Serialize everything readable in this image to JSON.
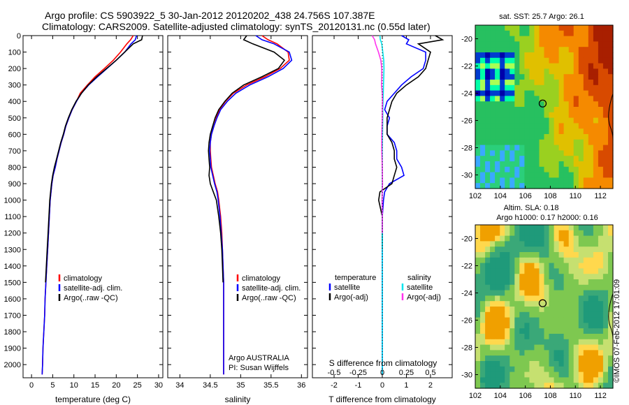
{
  "header": {
    "line1": "Argo profile: CS 5903922_5 30-Jan-2012 20120202_438 24.756S 107.387E",
    "line2": "Climatology: CARS2009. Satellite-adjusted climatology: synTS_20120131.nc (0.55d later)"
  },
  "colors": {
    "climatology": "#ff0000",
    "satellite": "#0000ff",
    "argo": "#000000",
    "sal_sat": "#00e5ee",
    "sal_argo": "#ff33ee"
  },
  "chart_data": [
    {
      "id": "temperature",
      "type": "line",
      "xlabel": "temperature (deg C)",
      "ylabel": "",
      "xlim": [
        -2,
        31
      ],
      "ylim": [
        2080,
        0
      ],
      "xticks": [
        0,
        5,
        10,
        15,
        20,
        25,
        30
      ],
      "yticks": [
        0,
        100,
        200,
        300,
        400,
        500,
        600,
        700,
        800,
        900,
        1000,
        1100,
        1200,
        1300,
        1400,
        1500,
        1600,
        1700,
        1800,
        1900,
        2000
      ],
      "legend": [
        "climatology",
        "satellite-adj. clim.",
        "Argo(..raw -QC)"
      ],
      "series": [
        {
          "name": "climatology",
          "color": "#ff0000",
          "x": [
            24.0,
            23.4,
            22.5,
            21.0,
            19.3,
            17.2,
            15.0,
            13.2,
            11.5,
            10.6,
            9.6,
            8.8,
            8.1,
            7.6,
            7.0,
            6.5,
            6.0,
            5.6,
            5.1,
            4.8,
            4.6,
            4.4,
            4.2,
            4.0,
            3.8,
            3.6,
            3.4,
            3.2,
            3.1,
            3.0,
            2.9,
            2.8,
            2.7,
            2.6,
            2.5
          ],
          "y": [
            0,
            25,
            50,
            100,
            150,
            200,
            250,
            300,
            350,
            400,
            450,
            500,
            550,
            600,
            650,
            700,
            750,
            800,
            850,
            900,
            950,
            1000,
            1100,
            1200,
            1300,
            1400,
            1500,
            1600,
            1700,
            1750,
            1800,
            1850,
            1900,
            2000,
            2060
          ]
        },
        {
          "name": "satellite-adj. clim.",
          "color": "#0000ff",
          "x": [
            24.8,
            24.5,
            23.5,
            22.0,
            20.0,
            17.8,
            15.6,
            13.5,
            11.8,
            10.6,
            9.6,
            8.8,
            8.1,
            7.6,
            7.0,
            6.5,
            6.0,
            5.6,
            5.1,
            4.8,
            4.6,
            4.4,
            4.2,
            4.0,
            3.8,
            3.6,
            3.4,
            3.2,
            3.1,
            3.0,
            2.9,
            2.8,
            2.7,
            2.6,
            2.5
          ],
          "y": [
            0,
            25,
            50,
            100,
            150,
            200,
            250,
            300,
            350,
            400,
            450,
            500,
            550,
            600,
            650,
            700,
            750,
            800,
            850,
            900,
            950,
            1000,
            1100,
            1200,
            1300,
            1400,
            1500,
            1600,
            1700,
            1750,
            1800,
            1850,
            1900,
            2000,
            2060
          ]
        },
        {
          "name": "Argo(..raw -QC)",
          "color": "#000000",
          "x": [
            26.2,
            26.0,
            24.0,
            22.0,
            20.0,
            17.7,
            15.4,
            13.4,
            11.8,
            10.5,
            9.5,
            8.7,
            8.0,
            7.5,
            6.9,
            6.4,
            5.9,
            5.4,
            5.0,
            4.7,
            4.5,
            4.3,
            4.1,
            3.9,
            3.7,
            3.5,
            3.3
          ],
          "y": [
            0,
            25,
            50,
            100,
            150,
            200,
            250,
            300,
            350,
            400,
            450,
            500,
            550,
            600,
            650,
            700,
            750,
            800,
            850,
            900,
            950,
            1000,
            1100,
            1200,
            1300,
            1400,
            1500
          ]
        }
      ]
    },
    {
      "id": "salinity",
      "type": "line",
      "xlabel": "salinity",
      "ylabel": "",
      "xlim": [
        33.8,
        36.1
      ],
      "ylim": [
        2080,
        0
      ],
      "xticks": [
        34,
        34.5,
        35,
        35.5,
        36
      ],
      "legend": [
        "climatology",
        "satellite-adj. clim.",
        "Argo(..raw -QC)"
      ],
      "annotation": [
        "Argo AUSTRALIA",
        "PI: Susan Wijffels"
      ],
      "series": [
        {
          "name": "climatology",
          "color": "#ff0000",
          "x": [
            35.35,
            35.45,
            35.6,
            35.78,
            35.8,
            35.65,
            35.4,
            35.1,
            34.88,
            34.75,
            34.65,
            34.6,
            34.56,
            34.52,
            34.5,
            34.5,
            34.51,
            34.52,
            34.55,
            34.58,
            34.62,
            34.64,
            34.67,
            34.69,
            34.7,
            34.71,
            34.72,
            34.72,
            34.72
          ],
          "y": [
            0,
            25,
            50,
            100,
            150,
            200,
            250,
            300,
            350,
            400,
            450,
            500,
            550,
            600,
            650,
            700,
            750,
            800,
            850,
            900,
            950,
            1000,
            1100,
            1200,
            1300,
            1400,
            1500,
            1600,
            2060
          ]
        },
        {
          "name": "satellite-adj. clim.",
          "color": "#0000ff",
          "x": [
            35.25,
            35.35,
            35.55,
            35.8,
            35.84,
            35.7,
            35.45,
            35.15,
            34.92,
            34.78,
            34.67,
            34.61,
            34.56,
            34.52,
            34.5,
            34.49,
            34.5,
            34.51,
            34.54,
            34.57,
            34.61,
            34.63,
            34.66,
            34.68,
            34.7,
            34.71,
            34.72,
            34.72,
            34.72
          ],
          "y": [
            0,
            25,
            50,
            100,
            150,
            200,
            250,
            300,
            350,
            400,
            450,
            500,
            550,
            600,
            650,
            700,
            750,
            800,
            850,
            900,
            950,
            1000,
            1100,
            1200,
            1300,
            1400,
            1500,
            1600,
            2060
          ]
        },
        {
          "name": "Argo(..raw -QC)",
          "color": "#000000",
          "x": [
            35.1,
            35.05,
            35.2,
            35.55,
            35.72,
            35.62,
            35.35,
            35.05,
            34.86,
            34.74,
            34.64,
            34.58,
            34.54,
            34.5,
            34.48,
            34.47,
            34.48,
            34.49,
            34.48,
            34.5,
            34.55,
            34.6,
            34.64,
            34.67,
            34.69,
            34.7,
            34.71
          ],
          "y": [
            0,
            25,
            50,
            100,
            150,
            200,
            250,
            300,
            350,
            400,
            450,
            500,
            550,
            600,
            650,
            700,
            750,
            800,
            850,
            900,
            950,
            1000,
            1100,
            1200,
            1300,
            1400,
            1500
          ]
        }
      ]
    },
    {
      "id": "differences",
      "type": "line",
      "xlabel": "T difference from climatology",
      "xlabel_top": "S difference from climatology",
      "xlim": [
        -2.9,
        2.9
      ],
      "ylim": [
        2080,
        0
      ],
      "xticks": [
        -2,
        -1,
        0,
        1,
        2
      ],
      "xticklabels": [
        "-2",
        "-1",
        "0",
        "1",
        "2"
      ],
      "top_ticks": [
        -0.5,
        -0.25,
        0,
        0.25,
        0.5
      ],
      "top_ticklabels": [
        "-0.5",
        "-0.25",
        "0",
        "0.25",
        "0.5"
      ],
      "legend_temperature": {
        "title": "temperature",
        "items": [
          "satellite",
          "Argo(-adj)"
        ]
      },
      "legend_salinity": {
        "title": "salinity",
        "items": [
          "satellite",
          "Argo(-adj)"
        ]
      },
      "series": [
        {
          "name": "satellite",
          "color": "#0000ff",
          "x": [
            0.8,
            1.1,
            1.0,
            1.8,
            1.8,
            1.7,
            1.2,
            0.8,
            0.5,
            0.2,
            0.1,
            0.3,
            0.2,
            0.2,
            0.5,
            0.6,
            0.6,
            0.8,
            0.9,
            0.3,
            0.1,
            0.05,
            0.0,
            0.0,
            0.0,
            0.0,
            0.0,
            0.0,
            0.0
          ],
          "y": [
            0,
            25,
            50,
            100,
            150,
            200,
            250,
            300,
            350,
            400,
            450,
            500,
            550,
            600,
            650,
            700,
            750,
            800,
            850,
            900,
            950,
            1000,
            1100,
            1200,
            1300,
            1400,
            1500,
            1600,
            2060
          ]
        },
        {
          "name": "Argo(-adj)",
          "color": "#000000",
          "x": [
            2.2,
            2.5,
            1.5,
            2.0,
            1.9,
            1.8,
            1.5,
            1.0,
            0.6,
            0.4,
            0.3,
            0.2,
            0.2,
            0.2,
            0.4,
            0.5,
            0.5,
            0.6,
            0.5,
            0.4,
            -0.1,
            -0.15,
            0.0,
            0.0,
            0.0
          ],
          "y": [
            0,
            25,
            50,
            100,
            150,
            200,
            250,
            300,
            350,
            400,
            450,
            500,
            550,
            600,
            650,
            700,
            750,
            800,
            850,
            900,
            950,
            1000,
            1100,
            1200,
            1300
          ]
        },
        {
          "name": "satellite",
          "color": "#00e5ee",
          "x": [
            -0.1,
            -0.08,
            -0.02,
            0.02,
            0.06,
            0.07,
            0.06,
            0.05,
            0.04,
            0.03,
            0.02,
            0.02,
            0.01,
            0.0,
            0.0,
            0.0,
            -0.01,
            0.0,
            0.0,
            0.0
          ],
          "y": [
            0,
            25,
            50,
            100,
            150,
            200,
            250,
            300,
            350,
            400,
            450,
            500,
            600,
            700,
            800,
            900,
            1000,
            1200,
            1500,
            2060
          ]
        },
        {
          "name": "Argo(-adj)",
          "color": "#ff33ee",
          "x": [
            -0.42,
            -0.32,
            -0.28,
            -0.16,
            -0.06,
            -0.02,
            -0.02,
            -0.03,
            0.0,
            0.01,
            0.0,
            0.0,
            -0.02,
            -0.02,
            0.0,
            0.01,
            0.0,
            -0.01,
            0.0,
            0.0
          ],
          "y": [
            0,
            25,
            50,
            100,
            150,
            200,
            250,
            300,
            350,
            400,
            450,
            500,
            600,
            700,
            800,
            900,
            950,
            1000,
            1100,
            1200
          ]
        }
      ]
    },
    {
      "id": "sst_map",
      "type": "heatmap",
      "title": "sat. SST: 25.7 Argo: 26.1",
      "xlim": [
        102,
        113
      ],
      "ylim": [
        -31,
        -19
      ],
      "xticks": [
        102,
        104,
        106,
        108,
        110,
        112
      ],
      "yticks": [
        -20,
        -22,
        -24,
        -26,
        -28,
        -30
      ],
      "marker": {
        "lon": 107.387,
        "lat": -24.756
      }
    },
    {
      "id": "sla_map",
      "type": "heatmap",
      "title": "Altim. SLA: 0.18",
      "subtitle": "Argo h1000: 0.17 h2000: 0.16",
      "xlim": [
        102,
        113
      ],
      "ylim": [
        -31,
        -19
      ],
      "xticks": [
        102,
        104,
        106,
        108,
        110,
        112
      ],
      "yticks": [
        -20,
        -22,
        -24,
        -26,
        -28,
        -30
      ],
      "marker": {
        "lon": 107.387,
        "lat": -24.756
      }
    }
  ],
  "watermark": "©IMOS 07-Feb-2012 17:01:09"
}
